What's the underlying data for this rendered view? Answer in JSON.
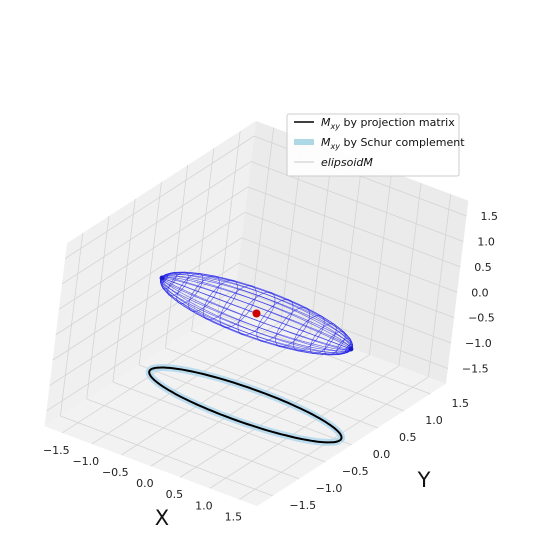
{
  "chart_data": {
    "type": "3d-wireframe",
    "xlabel": "X",
    "ylabel": "Y",
    "zlabel": "",
    "xlim": [
      -1.8,
      1.8
    ],
    "ylim": [
      -1.8,
      1.8
    ],
    "zlim": [
      -1.8,
      1.8
    ],
    "x_ticks": [
      "−1.5",
      "−1.0",
      "−0.5",
      "0.0",
      "0.5",
      "1.0",
      "1.5"
    ],
    "y_ticks": [
      "−1.5",
      "−1.0",
      "−0.5",
      "0.0",
      "0.5",
      "1.0",
      "1.5"
    ],
    "z_ticks": [
      "−1.5",
      "−1.0",
      "−0.5",
      "0.0",
      "0.5",
      "1.0",
      "1.5"
    ],
    "grid": true,
    "legend_position": "upper-right",
    "legend": [
      {
        "label_main": "M",
        "label_sub": "xy",
        "label_rest": " by projection matrix",
        "color": "#000000",
        "style": "line"
      },
      {
        "label_main": "M",
        "label_sub": "xy",
        "label_rest": " by Schur complement",
        "color": "#add8e6",
        "style": "thick"
      },
      {
        "label_main": "elipsoidM",
        "label_sub": "",
        "label_rest": "",
        "color": "#c8c8c8",
        "style": "line-italic"
      }
    ],
    "series": [
      {
        "kind": "ellipsoid-wireframe",
        "color": "#2020e8",
        "center": [
          0,
          0,
          0
        ],
        "semi_axes": [
          1.6,
          0.35,
          0.35
        ]
      },
      {
        "kind": "projected-ellipse",
        "color": "#000000",
        "z": -1.8
      },
      {
        "kind": "center-point",
        "color": "#cc0000",
        "point": [
          0,
          0,
          0
        ]
      }
    ]
  }
}
